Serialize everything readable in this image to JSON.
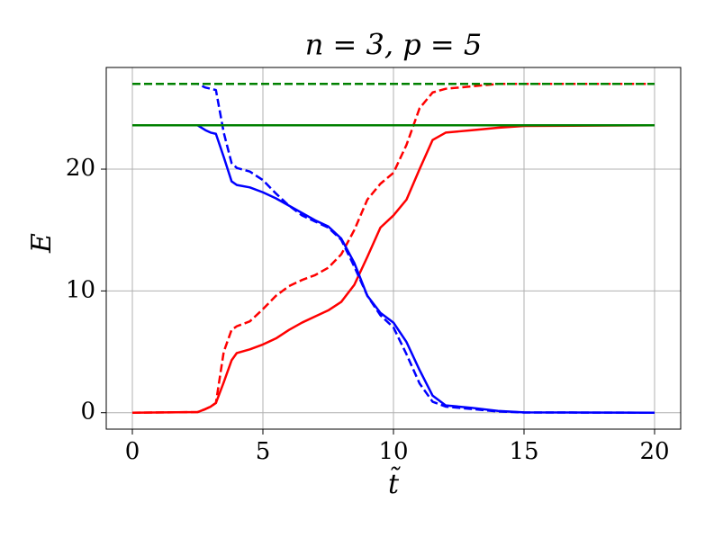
{
  "chart_data": {
    "type": "line",
    "title": "n = 3, p = 5",
    "xlabel": "t̃",
    "ylabel": "E",
    "x": [
      0,
      2.5,
      2.8,
      3,
      3.2,
      3.5,
      3.8,
      4,
      4.5,
      5,
      5.5,
      6,
      6.5,
      7,
      7.5,
      8,
      8.5,
      9,
      9.5,
      10,
      10.5,
      11,
      11.5,
      12,
      12.5,
      13,
      14,
      15,
      20
    ],
    "series": [
      {
        "color": "#ff0000",
        "dashed": false,
        "values": [
          0,
          0.05,
          0.3,
          0.5,
          0.8,
          2.5,
          4.3,
          4.9,
          5.2,
          5.6,
          6.1,
          6.8,
          7.4,
          7.9,
          8.4,
          9.1,
          10.5,
          12.8,
          15.2,
          16.2,
          17.5,
          20,
          22.4,
          23,
          23.1,
          23.2,
          23.4,
          23.55,
          23.6
        ]
      },
      {
        "color": "#ff0000",
        "dashed": true,
        "values": [
          0,
          0.05,
          0.3,
          0.5,
          0.8,
          5,
          6.8,
          7.1,
          7.5,
          8.5,
          9.6,
          10.4,
          10.9,
          11.3,
          11.9,
          13,
          15,
          17.5,
          18.8,
          19.7,
          22,
          25,
          26.3,
          26.6,
          26.7,
          26.8,
          27,
          27,
          27
        ]
      },
      {
        "color": "#0000ff",
        "dashed": false,
        "values": [
          23.6,
          23.6,
          23.2,
          23,
          22.9,
          21,
          19,
          18.7,
          18.5,
          18.1,
          17.6,
          17,
          16.4,
          15.8,
          15.3,
          14.3,
          12.3,
          9.6,
          8.2,
          7.4,
          5.8,
          3.5,
          1.4,
          0.6,
          0.5,
          0.4,
          0.15,
          0.03,
          0
        ]
      },
      {
        "color": "#0000ff",
        "dashed": true,
        "values": [
          27,
          27,
          26.7,
          26.6,
          26.5,
          23,
          20.5,
          20.1,
          19.8,
          19.1,
          18,
          17,
          16.2,
          15.7,
          15.2,
          14.2,
          12,
          9.6,
          8,
          7,
          4.8,
          2.4,
          0.9,
          0.5,
          0.4,
          0.3,
          0.1,
          0.02,
          0
        ]
      },
      {
        "color": "#008000",
        "dashed": false,
        "values": [
          23.6,
          23.6,
          23.6,
          23.6,
          23.6,
          23.6,
          23.6,
          23.6,
          23.6,
          23.6,
          23.6,
          23.6,
          23.6,
          23.6,
          23.6,
          23.6,
          23.6,
          23.6,
          23.6,
          23.6,
          23.6,
          23.6,
          23.6,
          23.6,
          23.6,
          23.6,
          23.6,
          23.6,
          23.6
        ]
      },
      {
        "color": "#008000",
        "dashed": true,
        "values": [
          27,
          27,
          27,
          27,
          27,
          27,
          27,
          27,
          27,
          27,
          27,
          27,
          27,
          27,
          27,
          27,
          27,
          27,
          27,
          27,
          27,
          27,
          27,
          27,
          27,
          27,
          27,
          27,
          27
        ]
      }
    ],
    "xlim": [
      -1,
      21
    ],
    "ylim": [
      -1.35,
      28.35
    ],
    "xticks": [
      0,
      5,
      10,
      15,
      20
    ],
    "yticks": [
      0,
      10,
      20
    ],
    "grid": true
  }
}
